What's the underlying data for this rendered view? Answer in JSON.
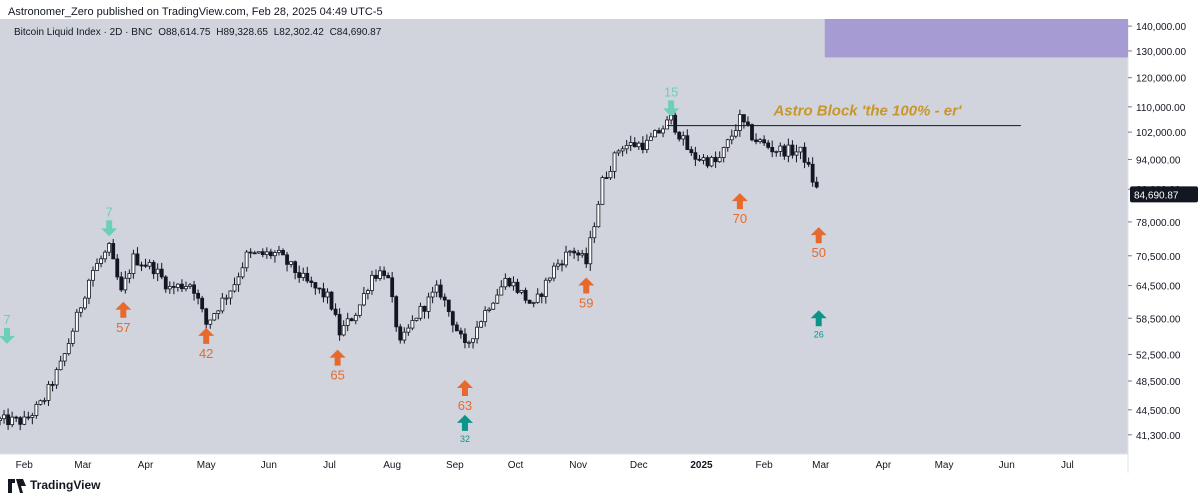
{
  "header": {
    "caption": "Astronomer_Zero published on TradingView.com, Feb 28, 2025 04:49 UTC-5"
  },
  "legend": {
    "symbol": "Bitcoin Liquid Index · 2D · BNC",
    "open": "O88,614.75",
    "high": "H89,328.65",
    "low": "L82,302.42",
    "close": "C84,690.87"
  },
  "footer": {
    "brand": "TradingView"
  },
  "colors": {
    "background": "#d1d4dc",
    "candle": "#131722",
    "up_fill": "#ffffff",
    "arrow_orange": "#e8692d",
    "arrow_teal": "#0d9488",
    "arrow_teal_light": "#6dcfb8",
    "annotation": "#c8962a",
    "box": "#a79bd3"
  },
  "chart_data": {
    "type": "candlestick",
    "title": "Bitcoin Liquid Index · 2D · BNC",
    "last_price_label": "84,690.87",
    "y_ticks": [
      "140,000.00",
      "130,000.00",
      "120,000.00",
      "110,000.00",
      "102,000.00",
      "94,000.00",
      "86,000.00",
      "78,000.00",
      "70,500.00",
      "64,500.00",
      "58,500.00",
      "52,500.00",
      "48,500.00",
      "44,500.00",
      "41,300.00"
    ],
    "x_ticks": [
      "Feb",
      "Mar",
      "Apr",
      "May",
      "Jun",
      "Jul",
      "Aug",
      "Sep",
      "Oct",
      "Nov",
      "Dec",
      "2025",
      "Feb",
      "Mar",
      "Apr",
      "May",
      "Jun",
      "Jul"
    ],
    "scale": "log",
    "x_range": [
      "2024-01-20",
      "2025-07-31"
    ],
    "y_range": [
      39000,
      143000
    ],
    "series_close": [
      [
        "2024-01-20",
        43100
      ],
      [
        "2024-02-01",
        43000
      ],
      [
        "2024-02-10",
        45500
      ],
      [
        "2024-02-20",
        51500
      ],
      [
        "2024-03-01",
        62000
      ],
      [
        "2024-03-05",
        67000
      ],
      [
        "2024-03-14",
        72000
      ],
      [
        "2024-03-20",
        63000
      ],
      [
        "2024-03-26",
        70000
      ],
      [
        "2024-04-05",
        68000
      ],
      [
        "2024-04-13",
        64000
      ],
      [
        "2024-04-24",
        65000
      ],
      [
        "2024-05-01",
        57500
      ],
      [
        "2024-05-15",
        65000
      ],
      [
        "2024-05-21",
        70500
      ],
      [
        "2024-06-05",
        71000
      ],
      [
        "2024-06-20",
        65000
      ],
      [
        "2024-07-01",
        62000
      ],
      [
        "2024-07-06",
        56000
      ],
      [
        "2024-07-15",
        60000
      ],
      [
        "2024-07-22",
        66500
      ],
      [
        "2024-07-29",
        67500
      ],
      [
        "2024-08-05",
        54000
      ],
      [
        "2024-08-13",
        59000
      ],
      [
        "2024-08-24",
        64000
      ],
      [
        "2024-09-06",
        53500
      ],
      [
        "2024-09-18",
        61000
      ],
      [
        "2024-09-27",
        66000
      ],
      [
        "2024-10-10",
        60500
      ],
      [
        "2024-10-20",
        68000
      ],
      [
        "2024-10-29",
        72000
      ],
      [
        "2024-11-05",
        69000
      ],
      [
        "2024-11-13",
        88000
      ],
      [
        "2024-11-22",
        98000
      ],
      [
        "2024-12-05",
        98500
      ],
      [
        "2024-12-17",
        106000
      ],
      [
        "2024-12-27",
        95000
      ],
      [
        "2025-01-09",
        93000
      ],
      [
        "2025-01-20",
        106000
      ],
      [
        "2025-01-27",
        100000
      ],
      [
        "2025-02-05",
        97000
      ],
      [
        "2025-02-20",
        96000
      ],
      [
        "2025-02-25",
        88500
      ],
      [
        "2025-02-28",
        84690.87
      ]
    ],
    "annotations": {
      "hline_label": "Astro Block 'the 100% - er'",
      "hline_value": 104000,
      "hline_range": [
        "2024-12-15",
        "2025-06-08"
      ],
      "box": {
        "x_range": [
          "2025-03-03",
          "2025-08-06"
        ],
        "y_range": [
          127500,
          145000
        ]
      },
      "markers": [
        {
          "label": "7",
          "date": "2024-01-20",
          "value": 55500,
          "dir": "down",
          "color": "teal_light"
        },
        {
          "label": "7",
          "date": "2024-03-14",
          "value": 76500,
          "dir": "down",
          "color": "teal_light"
        },
        {
          "label": "57",
          "date": "2024-03-21",
          "value": 60000,
          "dir": "up",
          "color": "orange"
        },
        {
          "label": "42",
          "date": "2024-05-01",
          "value": 55500,
          "dir": "up",
          "color": "orange"
        },
        {
          "label": "65",
          "date": "2024-07-05",
          "value": 52000,
          "dir": "up",
          "color": "orange"
        },
        {
          "label": "63",
          "date": "2024-09-06",
          "value": 47500,
          "dir": "up",
          "color": "orange"
        },
        {
          "label": "32",
          "date": "2024-09-06",
          "value": 42800,
          "dir": "up",
          "color": "teal"
        },
        {
          "label": "59",
          "date": "2024-11-05",
          "value": 64500,
          "dir": "up",
          "color": "orange"
        },
        {
          "label": "15",
          "date": "2024-12-17",
          "value": 109500,
          "dir": "down",
          "color": "teal_light"
        },
        {
          "label": "70",
          "date": "2025-01-20",
          "value": 83000,
          "dir": "up",
          "color": "orange"
        },
        {
          "label": "50",
          "date": "2025-02-28",
          "value": 75000,
          "dir": "up",
          "color": "orange"
        },
        {
          "label": "26",
          "date": "2025-02-28",
          "value": 58500,
          "dir": "up",
          "color": "teal"
        }
      ]
    }
  }
}
